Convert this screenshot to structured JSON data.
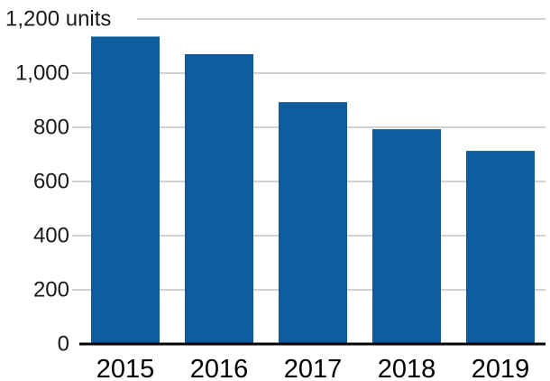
{
  "chart_data": {
    "type": "bar",
    "title": "",
    "xlabel": "",
    "ylabel": "",
    "unit_label": "units",
    "categories": [
      "2015",
      "2016",
      "2017",
      "2018",
      "2019"
    ],
    "values": [
      1135,
      1070,
      893,
      793,
      713
    ],
    "ylim": [
      0,
      1200
    ],
    "y_ticks": [
      0,
      200,
      400,
      600,
      800,
      1000,
      1200
    ],
    "y_tick_labels": [
      "0",
      "200",
      "400",
      "600",
      "800",
      "1,000",
      "1,200 units"
    ],
    "grid": true,
    "legend": "none",
    "bar_color": "#0f5c9e",
    "grid_color": "#a6a6a6",
    "axis_color": "#000000"
  }
}
